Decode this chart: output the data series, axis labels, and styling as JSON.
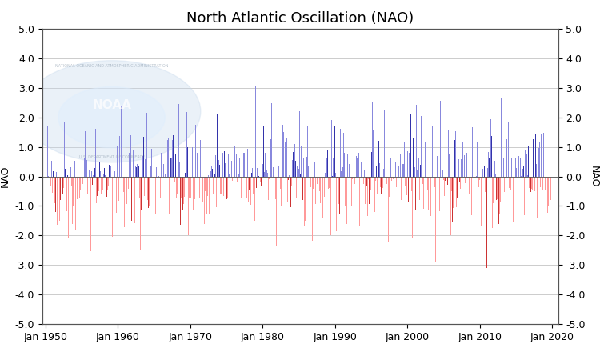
{
  "title": "North Atlantic Oscillation (NAO)",
  "ylabel_left": "NAO",
  "ylabel_right": "NAO",
  "ylim": [
    -5.0,
    5.0
  ],
  "yticks": [
    -5.0,
    -4.0,
    -3.0,
    -2.0,
    -1.0,
    0.0,
    1.0,
    2.0,
    3.0,
    4.0,
    5.0
  ],
  "start_year": 1950,
  "end_year": 2020,
  "color_positive_light": "#8888dd",
  "color_positive_dark": "#3333aa",
  "color_negative_light": "#ff9999",
  "color_negative_dark": "#cc3333",
  "bg_color": "#ffffff",
  "grid_color": "#cccccc",
  "title_fontsize": 13,
  "label_fontsize": 9,
  "tick_fontsize": 9,
  "figsize": [
    7.5,
    4.5
  ],
  "dpi": 100
}
